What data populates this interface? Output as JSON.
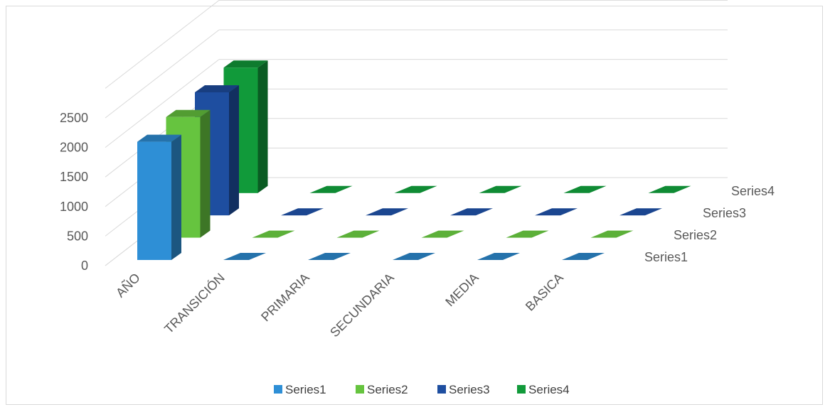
{
  "chart_data": {
    "type": "bar",
    "subtype": "3d-clustered-column",
    "title": "",
    "xlabel": "",
    "ylabel": "",
    "categories": [
      "AÑO",
      "TRANSICIÓN",
      "PRIMARIA",
      "SECUNDARIA",
      "MEDIA",
      "BASICA"
    ],
    "series": [
      {
        "name": "Series1",
        "color": "#2E8FD6",
        "values": [
          2000,
          0,
          0,
          0,
          0,
          0
        ]
      },
      {
        "name": "Series2",
        "color": "#66C43F",
        "values": [
          2001,
          0,
          0,
          0,
          0,
          0
        ]
      },
      {
        "name": "Series3",
        "color": "#1E4EA0",
        "values": [
          2002,
          0,
          0,
          0,
          0,
          0
        ]
      },
      {
        "name": "Series4",
        "color": "#119A3A",
        "values": [
          2003,
          0,
          0,
          0,
          0,
          0
        ]
      }
    ],
    "ylim": [
      0,
      2500
    ],
    "yticks": [
      "0",
      "500",
      "1000",
      "1500",
      "2000",
      "2500"
    ],
    "grid": true,
    "legend_position": "bottom"
  }
}
